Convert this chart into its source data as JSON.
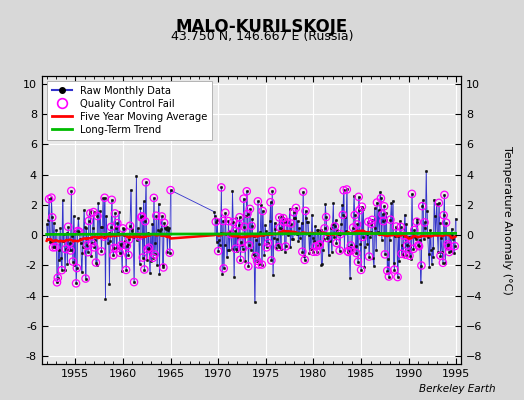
{
  "title": "MALO-KURILSKOJE",
  "subtitle": "43.750 N, 146.667 E (Russia)",
  "ylabel": "Temperature Anomaly (°C)",
  "credit": "Berkeley Earth",
  "xlim": [
    1951.5,
    1995.5
  ],
  "ylim": [
    -8.5,
    10.5
  ],
  "yticks": [
    -8,
    -6,
    -4,
    -2,
    0,
    2,
    4,
    6,
    8,
    10
  ],
  "xticks": [
    1955,
    1960,
    1965,
    1970,
    1975,
    1980,
    1985,
    1990,
    1995
  ],
  "bg_color": "#e8e8e8",
  "plot_bg": "#e8e8e8",
  "fig_bg": "#d8d8d8",
  "grid_color": "white",
  "raw_color": "#3333cc",
  "qc_color": "#ff00ff",
  "ma_color": "red",
  "trend_color": "#00bb00",
  "seed": 42,
  "gap_start": 1965.0,
  "gap_end": 1969.5
}
